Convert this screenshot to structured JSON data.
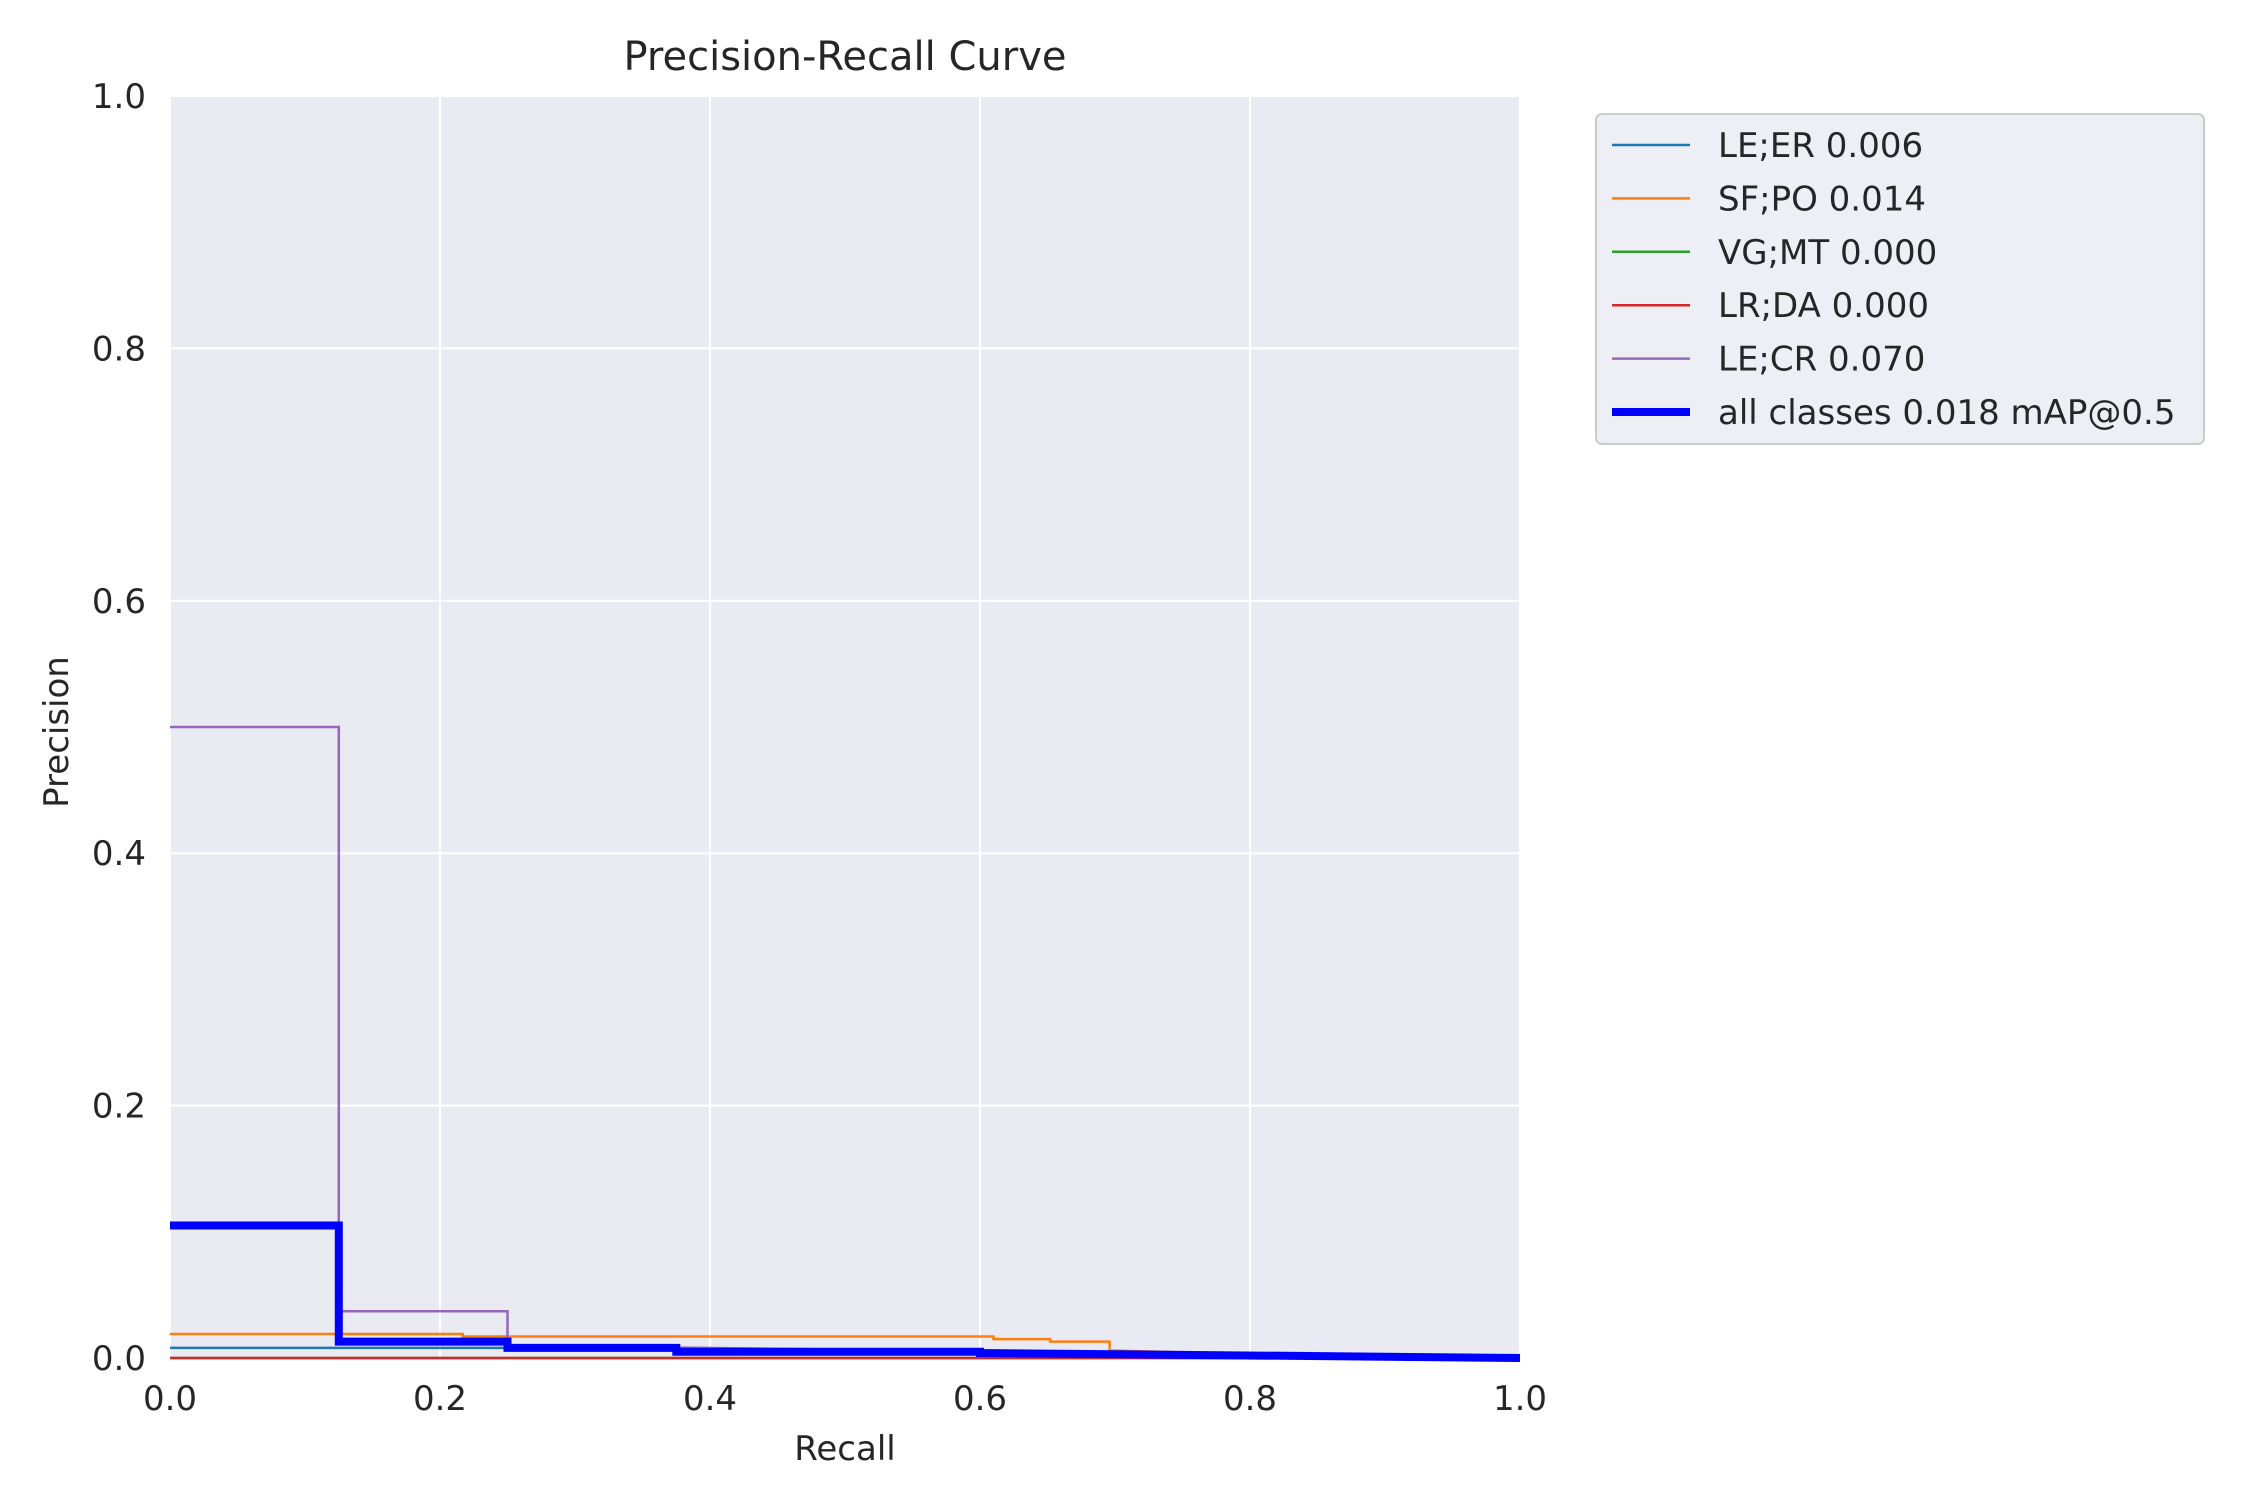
{
  "chart_data": {
    "type": "line",
    "title": "Precision-Recall Curve",
    "xlabel": "Recall",
    "ylabel": "Precision",
    "xlim": [
      0.0,
      1.0
    ],
    "ylim": [
      0.0,
      1.0
    ],
    "xticks": [
      "0.0",
      "0.2",
      "0.4",
      "0.6",
      "0.8",
      "1.0"
    ],
    "yticks": [
      "0.0",
      "0.2",
      "0.4",
      "0.6",
      "0.8",
      "1.0"
    ],
    "grid": true,
    "legend_placement": "outside-top-right",
    "background_color": "#eaeaf2",
    "series": [
      {
        "name": "LE;ER 0.006",
        "color": "#1f77b4",
        "thick": false,
        "points": [
          [
            0.0,
            0.008
          ],
          [
            0.375,
            0.008
          ],
          [
            0.375,
            0.006
          ],
          [
            1.0,
            0.0
          ]
        ]
      },
      {
        "name": "SF;PO 0.014",
        "color": "#ff7f0e",
        "thick": false,
        "points": [
          [
            0.0,
            0.019
          ],
          [
            0.217,
            0.019
          ],
          [
            0.217,
            0.017
          ],
          [
            0.61,
            0.017
          ],
          [
            0.61,
            0.015
          ],
          [
            0.652,
            0.015
          ],
          [
            0.652,
            0.013
          ],
          [
            0.696,
            0.013
          ],
          [
            0.696,
            0.006
          ],
          [
            0.8,
            0.003
          ],
          [
            1.0,
            0.0
          ]
        ]
      },
      {
        "name": "VG;MT 0.000",
        "color": "#2ca02c",
        "thick": false,
        "points": [
          [
            0.0,
            0.0
          ],
          [
            1.0,
            0.0
          ]
        ]
      },
      {
        "name": "LR;DA 0.000",
        "color": "#d62728",
        "thick": false,
        "points": [
          [
            0.0,
            0.0
          ],
          [
            1.0,
            0.0
          ]
        ]
      },
      {
        "name": "LE;CR 0.070",
        "color": "#9467bd",
        "thick": false,
        "points": [
          [
            0.0,
            0.5
          ],
          [
            0.125,
            0.5
          ],
          [
            0.125,
            0.037
          ],
          [
            0.25,
            0.037
          ],
          [
            0.25,
            0.01
          ],
          [
            1.0,
            0.0
          ]
        ]
      },
      {
        "name": "all classes 0.018 mAP@0.5",
        "color": "#0000ff",
        "thick": true,
        "points": [
          [
            0.0,
            0.105
          ],
          [
            0.125,
            0.105
          ],
          [
            0.125,
            0.013
          ],
          [
            0.25,
            0.013
          ],
          [
            0.25,
            0.008
          ],
          [
            0.375,
            0.008
          ],
          [
            0.375,
            0.005
          ],
          [
            0.6,
            0.005
          ],
          [
            0.6,
            0.004
          ],
          [
            1.0,
            0.0
          ]
        ]
      }
    ]
  }
}
